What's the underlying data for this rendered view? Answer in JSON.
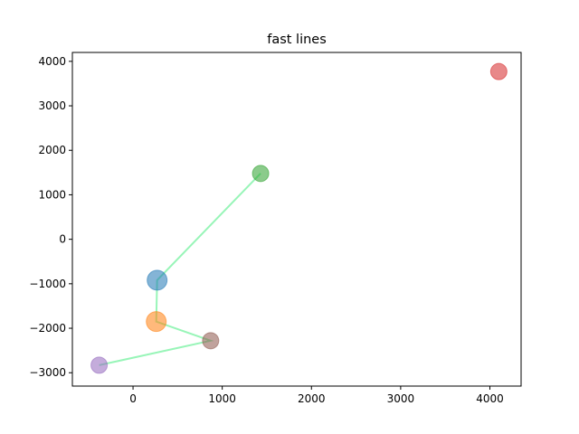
{
  "chart_data": {
    "type": "scatter",
    "title": "fast lines",
    "xlabel": "",
    "ylabel": "",
    "xlim": [
      -680,
      4350
    ],
    "ylim": [
      -3300,
      4200
    ],
    "xticks": [
      0,
      1000,
      2000,
      3000,
      4000
    ],
    "yticks": [
      -3000,
      -2000,
      -1000,
      0,
      1000,
      2000,
      3000,
      4000
    ],
    "grid": false,
    "points": [
      {
        "x": 270,
        "y": -920,
        "size": 22,
        "color": "#1f77b4"
      },
      {
        "x": 260,
        "y": -1850,
        "size": 22,
        "color": "#ff7f0e"
      },
      {
        "x": 1430,
        "y": 1480,
        "size": 18,
        "color": "#2ca02c"
      },
      {
        "x": 4100,
        "y": 3770,
        "size": 18,
        "color": "#d62728"
      },
      {
        "x": -380,
        "y": -2830,
        "size": 18,
        "color": "#9467bd"
      },
      {
        "x": 870,
        "y": -2280,
        "size": 18,
        "color": "#8c564b"
      }
    ],
    "line": {
      "color": "#98f5b8",
      "x": [
        1430,
        270,
        260,
        870,
        -380
      ],
      "y": [
        1480,
        -920,
        -1850,
        -2280,
        -2830
      ]
    }
  }
}
